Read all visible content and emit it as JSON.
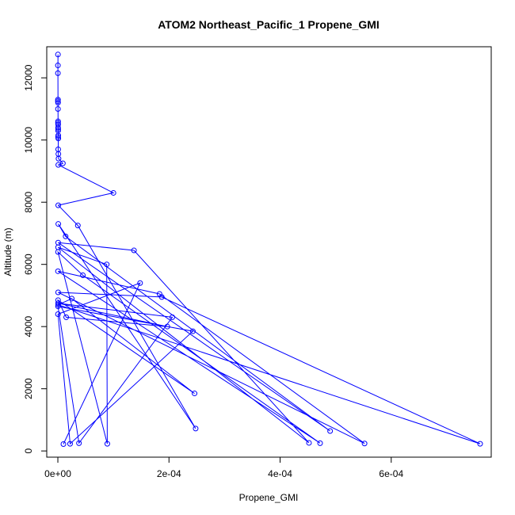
{
  "chart_data": {
    "type": "line",
    "title": "ATOM2 Northeast_Pacific_1 Propene_GMI",
    "xlabel": "Propene_GMI",
    "ylabel": "Altitude (m)",
    "xlim": [
      -2e-05,
      0.00078
    ],
    "ylim": [
      -200,
      13000
    ],
    "x_ticks": [
      0,
      0.0002,
      0.0004,
      0.0006
    ],
    "x_tick_labels": [
      "0e+00",
      "2e-04",
      "4e-04",
      "6e-04"
    ],
    "y_ticks": [
      0,
      2000,
      4000,
      6000,
      8000,
      10000,
      12000
    ],
    "y_tick_labels": [
      "0",
      "2000",
      "4000",
      "6000",
      "8000",
      "10000",
      "12000"
    ],
    "grid": false,
    "legend": "none",
    "color": "#0000ff",
    "series": [
      {
        "x": [
          2e-07,
          1e-07,
          1e-07,
          2e-07,
          1e-07,
          3e-07,
          2e-07,
          4e-07,
          3e-07,
          5e-07,
          4e-07,
          6e-07,
          5e-07,
          7e-07,
          4e-07,
          8e-07,
          6e-07,
          9e-07,
          1.2e-06,
          9e-06,
          8e-07,
          0.0001,
          7e-07,
          3.6e-05,
          0.000248,
          8e-07,
          1.4e-05,
          0.00049,
          5e-07,
          0.000137,
          0.000452,
          4e-07,
          8.8e-05,
          8.9e-05,
          3e-07,
          4.5e-05,
          0.000472,
          2e-07,
          0.000183,
          0.000552,
          5e-07,
          0.000187,
          0.00076,
          6e-07,
          2.5e-05,
          0.000246,
          4e-07,
          1.5e-05,
          0.000197,
          5e-07,
          0.000206,
          3.8e-05,
          3e-07,
          0.000243,
          2.2e-05,
          2e-07,
          0.000148,
          1e-05
        ],
        "y": [
          12750,
          12400,
          12150,
          11300,
          11250,
          11200,
          11000,
          10600,
          10550,
          10500,
          10400,
          10350,
          10300,
          10150,
          10100,
          10050,
          9700,
          9550,
          9400,
          9250,
          9200,
          8300,
          7900,
          7250,
          720,
          7300,
          6900,
          640,
          6700,
          6450,
          260,
          6550,
          6000,
          230,
          6400,
          5650,
          250,
          5780,
          5050,
          240,
          5100,
          4950,
          230,
          4700,
          4900,
          1850,
          4850,
          4300,
          4000,
          4750,
          4300,
          250,
          4650,
          3850,
          230,
          4400,
          5400,
          220
        ]
      }
    ]
  }
}
